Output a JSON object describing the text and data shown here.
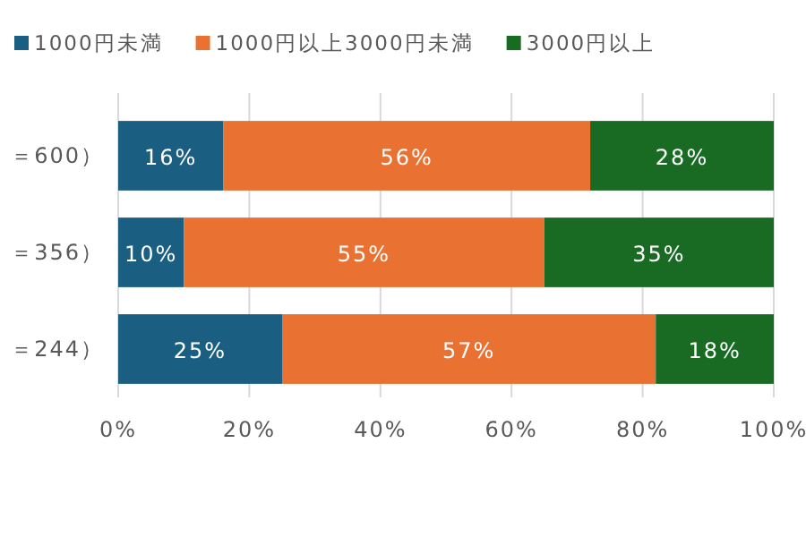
{
  "chart_data": {
    "type": "bar",
    "orientation": "horizontal",
    "stacked": true,
    "categories": [
      "＝600）",
      "＝356）",
      "＝244）"
    ],
    "series": [
      {
        "name": "1000円未満",
        "color": "#1a5e82",
        "values": [
          16,
          10,
          25
        ],
        "value_labels": [
          "16%",
          "10%",
          "25%"
        ]
      },
      {
        "name": "1000円以上3000円未満",
        "color": "#e97132",
        "values": [
          56,
          55,
          57
        ],
        "value_labels": [
          "56%",
          "55%",
          "57%"
        ]
      },
      {
        "name": "3000円以上",
        "color": "#196b24",
        "values": [
          28,
          35,
          18
        ],
        "value_labels": [
          "28%",
          "35%",
          "18%"
        ]
      }
    ],
    "xlim": [
      0,
      100
    ],
    "xticks": [
      {
        "value": 0,
        "label": "0%"
      },
      {
        "value": 20,
        "label": "20%"
      },
      {
        "value": 40,
        "label": "40%"
      },
      {
        "value": 60,
        "label": "60%"
      },
      {
        "value": 80,
        "label": "80%"
      },
      {
        "value": 100,
        "label": "100%"
      }
    ],
    "grid": "x",
    "legend": "top"
  }
}
